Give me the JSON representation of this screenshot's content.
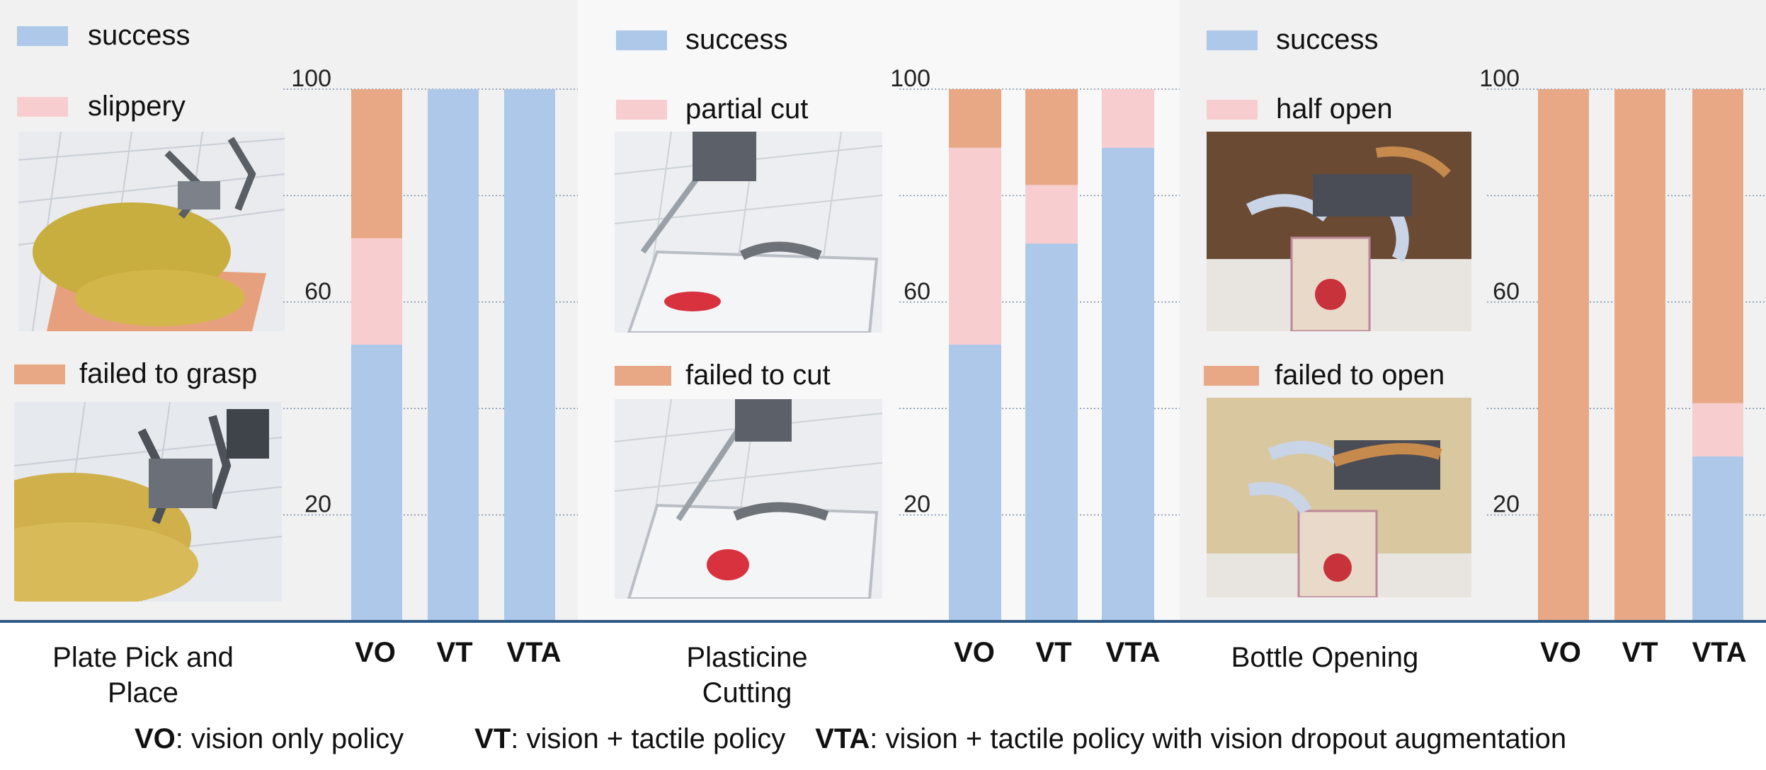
{
  "colors": {
    "success": "#adc8e8",
    "partial": "#f8cdd0",
    "failed": "#e8a785",
    "grid": "#7a8ea6"
  },
  "chart_data": [
    {
      "type": "bar",
      "title": "Plate Pick and Place",
      "categories": [
        "VO",
        "VT",
        "VTA"
      ],
      "ylim": [
        0,
        100
      ],
      "yticks": [
        20,
        60,
        100
      ],
      "stacked": true,
      "series": [
        {
          "name": "success",
          "values": [
            52,
            100,
            100
          ]
        },
        {
          "name": "slippery",
          "values": [
            20,
            0,
            0
          ]
        },
        {
          "name": "failed to grasp",
          "values": [
            28,
            0,
            0
          ]
        }
      ]
    },
    {
      "type": "bar",
      "title": "Plasticine Cutting",
      "categories": [
        "VO",
        "VT",
        "VTA"
      ],
      "ylim": [
        0,
        100
      ],
      "yticks": [
        20,
        60,
        100
      ],
      "stacked": true,
      "series": [
        {
          "name": "success",
          "values": [
            52,
            71,
            89
          ]
        },
        {
          "name": "partial cut",
          "values": [
            37,
            11,
            11
          ]
        },
        {
          "name": "failed to cut",
          "values": [
            11,
            18,
            0
          ]
        }
      ]
    },
    {
      "type": "bar",
      "title": "Bottle Opening",
      "categories": [
        "VO",
        "VT",
        "VTA"
      ],
      "ylim": [
        0,
        100
      ],
      "yticks": [
        20,
        60,
        100
      ],
      "stacked": true,
      "series": [
        {
          "name": "success",
          "values": [
            0,
            0,
            31
          ]
        },
        {
          "name": "half open",
          "values": [
            0,
            0,
            10
          ]
        },
        {
          "name": "failed to open",
          "values": [
            100,
            100,
            59
          ]
        }
      ]
    }
  ],
  "footer": {
    "vo_abbr": "VO",
    "vo_desc": ": vision only policy",
    "vt_abbr": "VT",
    "vt_desc": ": vision + tactile policy",
    "vta_abbr": "VTA",
    "vta_desc": ": vision + tactile policy with vision dropout augmentation"
  },
  "title_lines": [
    [
      "Plate Pick and",
      "Place"
    ],
    [
      "Plasticine",
      "Cutting"
    ],
    [
      "Bottle Opening"
    ]
  ],
  "photos": [
    [
      "plate-slippery-photo",
      "plate-failed-photo"
    ],
    [
      "plasticine-partial-photo",
      "plasticine-failed-photo"
    ],
    [
      "bottle-halfopen-photo",
      "bottle-failed-photo"
    ]
  ]
}
